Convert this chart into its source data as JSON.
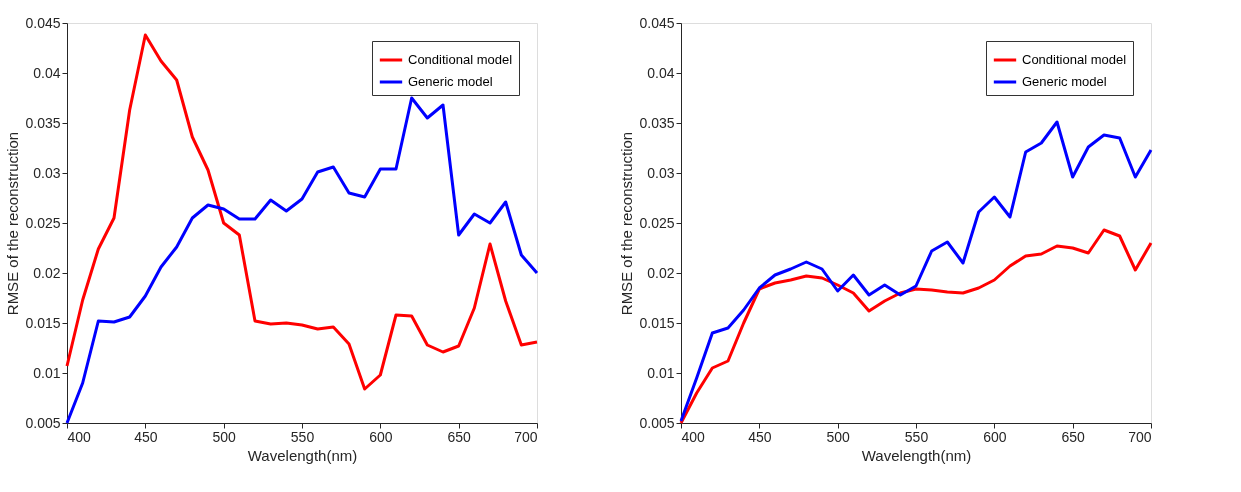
{
  "chart_data": [
    {
      "type": "line",
      "xlabel": "Wavelength(nm)",
      "ylabel": "RMSE of the reconstruction",
      "x": [
        400,
        410,
        420,
        430,
        440,
        450,
        460,
        470,
        480,
        490,
        500,
        510,
        520,
        530,
        540,
        550,
        560,
        570,
        580,
        590,
        600,
        610,
        620,
        630,
        640,
        650,
        660,
        670,
        680,
        690,
        700
      ],
      "xlim": [
        400,
        700
      ],
      "xticks": [
        400,
        450,
        500,
        550,
        600,
        650,
        700
      ],
      "ylim": [
        0.005,
        0.045
      ],
      "yticks": [
        0.005,
        0.01,
        0.015,
        0.02,
        0.025,
        0.03,
        0.035,
        0.04,
        0.045
      ],
      "grid": false,
      "legend": "top right",
      "line_style": "solid",
      "marker": "none",
      "series": [
        {
          "name": "Conditional model",
          "color": "#ff0000",
          "values": [
            0.0107,
            0.0173,
            0.0224,
            0.0255,
            0.0363,
            0.0438,
            0.0412,
            0.0393,
            0.0336,
            0.0303,
            0.025,
            0.0238,
            0.0152,
            0.0149,
            0.015,
            0.0148,
            0.0144,
            0.0146,
            0.0129,
            0.0084,
            0.0098,
            0.0158,
            0.0157,
            0.0128,
            0.0121,
            0.0127,
            0.0165,
            0.0229,
            0.0172,
            0.0128,
            0.0131
          ]
        },
        {
          "name": "Generic model",
          "color": "#0000ff",
          "values": [
            0.005,
            0.009,
            0.0152,
            0.0151,
            0.0156,
            0.0177,
            0.0206,
            0.0226,
            0.0255,
            0.0268,
            0.0264,
            0.0254,
            0.0254,
            0.0273,
            0.0262,
            0.0274,
            0.0301,
            0.0306,
            0.028,
            0.0276,
            0.0304,
            0.0304,
            0.0375,
            0.0355,
            0.0368,
            0.0238,
            0.0259,
            0.025,
            0.0271,
            0.0218,
            0.02
          ]
        }
      ]
    },
    {
      "type": "line",
      "xlabel": "Wavelength(nm)",
      "ylabel": "RMSE of the reconstruction",
      "x": [
        400,
        410,
        420,
        430,
        440,
        450,
        460,
        470,
        480,
        490,
        500,
        510,
        520,
        530,
        540,
        550,
        560,
        570,
        580,
        590,
        600,
        610,
        620,
        630,
        640,
        650,
        660,
        670,
        680,
        690,
        700
      ],
      "xlim": [
        400,
        700
      ],
      "xticks": [
        400,
        450,
        500,
        550,
        600,
        650,
        700
      ],
      "ylim": [
        0.005,
        0.045
      ],
      "yticks": [
        0.005,
        0.01,
        0.015,
        0.02,
        0.025,
        0.03,
        0.035,
        0.04,
        0.045
      ],
      "grid": false,
      "legend": "top right",
      "line_style": "solid",
      "marker": "none",
      "series": [
        {
          "name": "Conditional model",
          "color": "#ff0000",
          "values": [
            0.005,
            0.008,
            0.0105,
            0.0112,
            0.015,
            0.0184,
            0.019,
            0.0193,
            0.0197,
            0.0195,
            0.0188,
            0.018,
            0.0162,
            0.0172,
            0.018,
            0.0184,
            0.0183,
            0.0181,
            0.018,
            0.0185,
            0.0193,
            0.0207,
            0.0217,
            0.0219,
            0.0227,
            0.0225,
            0.022,
            0.0243,
            0.0237,
            0.0203,
            0.023
          ]
        },
        {
          "name": "Generic model",
          "color": "#0000ff",
          "values": [
            0.0052,
            0.0095,
            0.014,
            0.0145,
            0.0163,
            0.0185,
            0.0198,
            0.0204,
            0.0211,
            0.0204,
            0.0182,
            0.0198,
            0.0178,
            0.0188,
            0.0178,
            0.0187,
            0.0222,
            0.0231,
            0.021,
            0.0261,
            0.0276,
            0.0256,
            0.0321,
            0.033,
            0.0351,
            0.0296,
            0.0326,
            0.0338,
            0.0335,
            0.0296,
            0.0323
          ]
        }
      ]
    }
  ]
}
